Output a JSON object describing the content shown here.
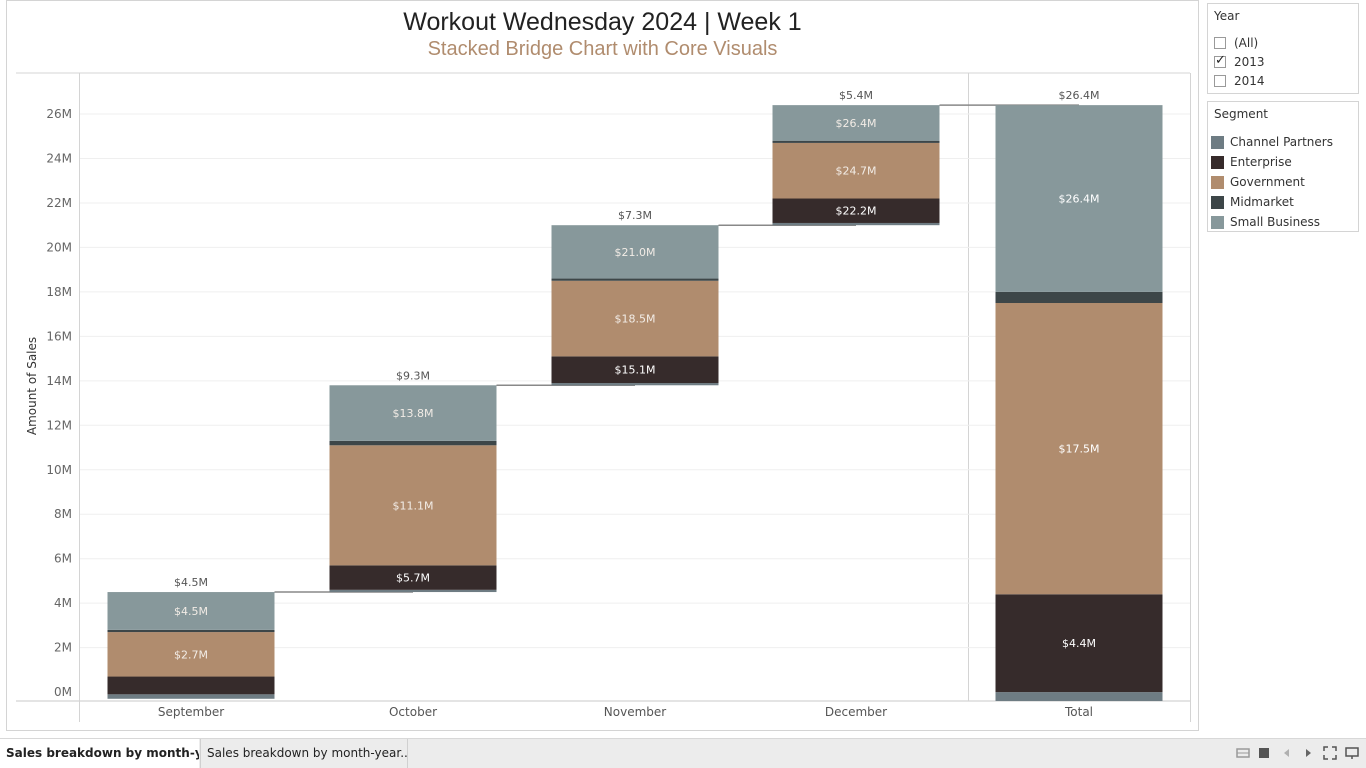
{
  "chart_data": {
    "type": "bar",
    "title": "Workout Wednesday 2024 | Week 1",
    "subtitle": "Stacked Bridge Chart with Core Visuals",
    "ylabel": "Amount of Sales",
    "ylim": [
      -0.4,
      27.8
    ],
    "y_ticks": [
      0,
      2,
      4,
      6,
      8,
      10,
      12,
      14,
      16,
      18,
      20,
      22,
      24,
      26
    ],
    "y_tick_labels": [
      "0M",
      "2M",
      "4M",
      "6M",
      "8M",
      "10M",
      "12M",
      "14M",
      "16M",
      "18M",
      "20M",
      "22M",
      "24M",
      "26M"
    ],
    "categories": [
      "September",
      "October",
      "November",
      "December",
      "Total"
    ],
    "bars": [
      {
        "category": "September",
        "base": -0.3,
        "total_label": "$4.5M",
        "connector_to": 4.5,
        "segments": [
          {
            "segment": "Channel Partners",
            "from": -0.3,
            "to": -0.1,
            "label": ""
          },
          {
            "segment": "Enterprise",
            "from": -0.1,
            "to": 0.7,
            "label": ""
          },
          {
            "segment": "Government",
            "from": 0.7,
            "to": 2.7,
            "label": "$2.7M"
          },
          {
            "segment": "Midmarket",
            "from": 2.7,
            "to": 2.8,
            "label": ""
          },
          {
            "segment": "Small Business",
            "from": 2.8,
            "to": 4.5,
            "label": "$4.5M"
          }
        ]
      },
      {
        "category": "October",
        "base": 4.5,
        "total_label": "$9.3M",
        "connector_to": 13.8,
        "segments": [
          {
            "segment": "Channel Partners",
            "from": 4.5,
            "to": 4.6,
            "label": ""
          },
          {
            "segment": "Enterprise",
            "from": 4.6,
            "to": 5.7,
            "label": "$5.7M"
          },
          {
            "segment": "Government",
            "from": 5.7,
            "to": 11.1,
            "label": "$11.1M"
          },
          {
            "segment": "Midmarket",
            "from": 11.1,
            "to": 11.3,
            "label": ""
          },
          {
            "segment": "Small Business",
            "from": 11.3,
            "to": 13.8,
            "label": "$13.8M"
          }
        ]
      },
      {
        "category": "November",
        "base": 13.8,
        "total_label": "$7.3M",
        "connector_to": 21.0,
        "segments": [
          {
            "segment": "Channel Partners",
            "from": 13.8,
            "to": 13.9,
            "label": ""
          },
          {
            "segment": "Enterprise",
            "from": 13.9,
            "to": 15.1,
            "label": "$15.1M"
          },
          {
            "segment": "Government",
            "from": 15.1,
            "to": 18.5,
            "label": "$18.5M"
          },
          {
            "segment": "Midmarket",
            "from": 18.5,
            "to": 18.6,
            "label": ""
          },
          {
            "segment": "Small Business",
            "from": 18.6,
            "to": 21.0,
            "label": "$21.0M"
          }
        ]
      },
      {
        "category": "December",
        "base": 21.0,
        "total_label": "$5.4M",
        "connector_to": 26.4,
        "segments": [
          {
            "segment": "Channel Partners",
            "from": 21.0,
            "to": 21.1,
            "label": ""
          },
          {
            "segment": "Enterprise",
            "from": 21.1,
            "to": 22.2,
            "label": "$22.2M"
          },
          {
            "segment": "Government",
            "from": 22.2,
            "to": 24.7,
            "label": "$24.7M"
          },
          {
            "segment": "Midmarket",
            "from": 24.7,
            "to": 24.8,
            "label": ""
          },
          {
            "segment": "Small Business",
            "from": 24.8,
            "to": 26.4,
            "label": "$26.4M"
          }
        ]
      },
      {
        "category": "Total",
        "base": -0.4,
        "total_label": "$26.4M",
        "connector_to": null,
        "segments": [
          {
            "segment": "Channel Partners",
            "from": -0.4,
            "to": 0.0,
            "label": ""
          },
          {
            "segment": "Enterprise",
            "from": 0.0,
            "to": 4.4,
            "label": "$4.4M"
          },
          {
            "segment": "Government",
            "from": 4.4,
            "to": 17.5,
            "label": "$17.5M"
          },
          {
            "segment": "Midmarket",
            "from": 17.5,
            "to": 18.0,
            "label": ""
          },
          {
            "segment": "Small Business",
            "from": 18.0,
            "to": 26.4,
            "label": "$26.4M"
          }
        ]
      }
    ],
    "colors": {
      "Channel Partners": "#6e7c83",
      "Enterprise": "#362b2b",
      "Government": "#b08c6e",
      "Midmarket": "#3d4648",
      "Small Business": "#87989b"
    },
    "connector_color": "#888888",
    "grid": true,
    "legend_position": "right"
  },
  "filters": {
    "year": {
      "title": "Year",
      "options": [
        {
          "label": "(All)",
          "checked": false
        },
        {
          "label": "2013",
          "checked": true
        },
        {
          "label": "2014",
          "checked": false
        }
      ]
    }
  },
  "legend": {
    "title": "Segment",
    "items": [
      {
        "label": "Channel Partners",
        "color": "#6e7c83"
      },
      {
        "label": "Enterprise",
        "color": "#362b2b"
      },
      {
        "label": "Government",
        "color": "#b08c6e"
      },
      {
        "label": "Midmarket",
        "color": "#3d4648"
      },
      {
        "label": "Small Business",
        "color": "#87989b"
      }
    ]
  },
  "tabs": [
    {
      "label": "Sales breakdown by month-ye...",
      "active": true
    },
    {
      "label": "Sales breakdown by month-year...",
      "active": false
    }
  ],
  "toolbar": {
    "icons": [
      "grid-view-icon",
      "single-view-icon",
      "prev-arrow-icon",
      "next-arrow-icon",
      "fullscreen-icon",
      "present-icon"
    ]
  }
}
